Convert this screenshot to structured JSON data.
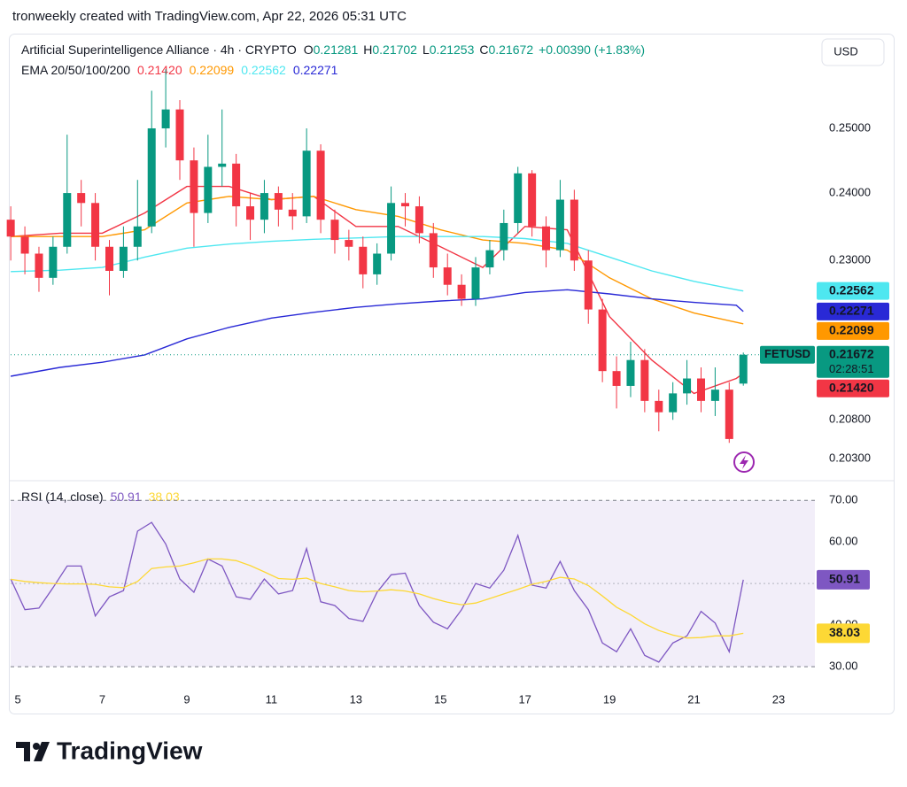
{
  "page": {
    "attribution": "tronweekly created with TradingView.com, Apr 22, 2026 05:31 UTC",
    "brand": "TradingView"
  },
  "chart_data": [
    {
      "type": "candlestick",
      "title": "Artificial Superintelligence Alliance · 4h · CRYPTO",
      "symbol": "FETUSD",
      "currency": "USD",
      "ohlc_legend": [
        {
          "key": "O",
          "text": "0.21281"
        },
        {
          "key": "H",
          "text": "0.21702"
        },
        {
          "key": "L",
          "text": "0.21253"
        },
        {
          "key": "C",
          "text": "0.21672"
        }
      ],
      "change": "+0.00390 (+1.83%)",
      "last_price_label": "0.21672",
      "countdown": "02:28:51",
      "up_color": "#089981",
      "down_color": "#f23645",
      "log_scale": true,
      "xlim": [
        4.83,
        23.86
      ],
      "xticks": [
        5,
        7,
        9,
        11,
        13,
        15,
        17,
        19,
        21,
        23
      ],
      "ylim": [
        0.2005,
        0.2651
      ],
      "yticks": [
        {
          "value": 0.25,
          "label": "0.25000"
        },
        {
          "value": 0.24,
          "label": "0.24000"
        },
        {
          "value": 0.23,
          "label": "0.23000"
        },
        {
          "value": 0.208,
          "label": "0.20800"
        },
        {
          "value": 0.203,
          "label": "0.20300"
        }
      ],
      "x": [
        4.833,
        5.167,
        5.5,
        5.833,
        6.167,
        6.5,
        6.833,
        7.167,
        7.5,
        7.833,
        8.167,
        8.5,
        8.833,
        9.167,
        9.5,
        9.833,
        10.167,
        10.5,
        10.833,
        11.167,
        11.5,
        11.833,
        12.167,
        12.5,
        12.833,
        13.167,
        13.5,
        13.833,
        14.167,
        14.5,
        14.833,
        15.167,
        15.5,
        15.833,
        16.167,
        16.5,
        16.833,
        17.167,
        17.5,
        17.833,
        18.167,
        18.5,
        18.833,
        19.167,
        19.5,
        19.833,
        20.167,
        20.5,
        20.833,
        21.167,
        21.5,
        21.833,
        22.167
      ],
      "open": [
        0.236,
        0.2335,
        0.231,
        0.2275,
        0.232,
        0.24,
        0.2385,
        0.232,
        0.2285,
        0.232,
        0.235,
        0.25,
        0.253,
        0.245,
        0.237,
        0.244,
        0.2445,
        0.238,
        0.236,
        0.24,
        0.2375,
        0.2365,
        0.2465,
        0.236,
        0.233,
        0.232,
        0.228,
        0.231,
        0.2385,
        0.238,
        0.234,
        0.229,
        0.2265,
        0.2245,
        0.229,
        0.2315,
        0.2355,
        0.243,
        0.235,
        0.2315,
        0.239,
        0.23,
        0.223,
        0.2145,
        0.2125,
        0.216,
        0.2105,
        0.209,
        0.2115,
        0.2135,
        0.2105,
        0.212,
        0.21281
      ],
      "high": [
        0.238,
        0.235,
        0.232,
        0.2335,
        0.249,
        0.242,
        0.24,
        0.233,
        0.235,
        0.242,
        0.256,
        0.2595,
        0.2545,
        0.247,
        0.249,
        0.253,
        0.246,
        0.24,
        0.242,
        0.241,
        0.24,
        0.25,
        0.2475,
        0.2375,
        0.2345,
        0.2335,
        0.2325,
        0.241,
        0.24,
        0.2395,
        0.2355,
        0.231,
        0.228,
        0.2305,
        0.233,
        0.2375,
        0.244,
        0.2435,
        0.2365,
        0.242,
        0.2405,
        0.2315,
        0.2245,
        0.2165,
        0.2185,
        0.2175,
        0.212,
        0.213,
        0.216,
        0.215,
        0.215,
        0.213,
        0.21702
      ],
      "low": [
        0.23,
        0.228,
        0.2255,
        0.2265,
        0.231,
        0.235,
        0.23,
        0.225,
        0.2275,
        0.23,
        0.234,
        0.247,
        0.242,
        0.232,
        0.2355,
        0.241,
        0.235,
        0.233,
        0.234,
        0.235,
        0.2345,
        0.2355,
        0.234,
        0.231,
        0.23,
        0.226,
        0.2265,
        0.23,
        0.235,
        0.2325,
        0.2275,
        0.225,
        0.2235,
        0.2235,
        0.228,
        0.23,
        0.234,
        0.2335,
        0.229,
        0.2305,
        0.2285,
        0.221,
        0.213,
        0.2095,
        0.211,
        0.209,
        0.2065,
        0.208,
        0.21,
        0.209,
        0.2085,
        0.205,
        0.21253
      ],
      "close": [
        0.2335,
        0.231,
        0.2275,
        0.232,
        0.24,
        0.2385,
        0.232,
        0.2285,
        0.232,
        0.235,
        0.25,
        0.253,
        0.245,
        0.237,
        0.244,
        0.2445,
        0.238,
        0.236,
        0.24,
        0.2375,
        0.2365,
        0.2465,
        0.236,
        0.233,
        0.232,
        0.228,
        0.231,
        0.2385,
        0.238,
        0.234,
        0.229,
        0.2265,
        0.2245,
        0.229,
        0.2315,
        0.2355,
        0.243,
        0.235,
        0.2315,
        0.239,
        0.23,
        0.223,
        0.2145,
        0.2125,
        0.216,
        0.2105,
        0.209,
        0.2115,
        0.2135,
        0.2105,
        0.212,
        0.2055,
        0.21672
      ],
      "overlays": {
        "title": "EMA 20/50/100/200",
        "x": [
          4.833,
          6,
          7,
          8,
          9,
          10,
          11,
          12,
          13,
          14,
          15,
          16,
          17,
          18,
          19,
          20,
          21,
          22,
          22.167
        ],
        "series": [
          {
            "color": "#f23645",
            "last_label": "0.21420",
            "values": [
              0.2335,
              0.234,
              0.234,
              0.237,
              0.241,
              0.241,
              0.239,
              0.2395,
              0.235,
              0.235,
              0.232,
              0.229,
              0.235,
              0.2345,
              0.222,
              0.216,
              0.2115,
              0.2135,
              0.2142
            ]
          },
          {
            "color": "#ff9800",
            "last_label": "0.22099",
            "values": [
              0.2335,
              0.2335,
              0.2335,
              0.2345,
              0.2385,
              0.2395,
              0.239,
              0.2395,
              0.2375,
              0.2365,
              0.2345,
              0.233,
              0.2325,
              0.2315,
              0.2275,
              0.2245,
              0.2225,
              0.2212,
              0.22099
            ]
          },
          {
            "color": "#4ee7f0",
            "last_label": "0.22562",
            "values": [
              0.2284,
              0.2286,
              0.229,
              0.2305,
              0.2318,
              0.2324,
              0.2328,
              0.2331,
              0.2333,
              0.2335,
              0.2335,
              0.2335,
              0.2332,
              0.2325,
              0.2305,
              0.2285,
              0.227,
              0.2258,
              0.22562
            ]
          },
          {
            "color": "#2929d6",
            "last_label": "0.22271",
            "values": [
              0.2138,
              0.215,
              0.2157,
              0.2167,
              0.2189,
              0.2205,
              0.2218,
              0.2226,
              0.2233,
              0.2238,
              0.2242,
              0.2245,
              0.2254,
              0.2258,
              0.2252,
              0.2245,
              0.224,
              0.2236,
              0.22271
            ]
          }
        ]
      }
    },
    {
      "type": "line",
      "title": "RSI (14, close)",
      "ylim": [
        26.4,
        74.3
      ],
      "yticks": [
        {
          "value": 70,
          "label": "70.00"
        },
        {
          "value": 60,
          "label": "60.00"
        },
        {
          "value": 40,
          "label": "40.00"
        },
        {
          "value": 30,
          "label": "30.00"
        }
      ],
      "band": [
        30,
        70
      ],
      "midline": 50,
      "band_color": "#7e57c2",
      "x": [
        4.833,
        5.167,
        5.5,
        5.833,
        6.167,
        6.5,
        6.833,
        7.167,
        7.5,
        7.833,
        8.167,
        8.5,
        8.833,
        9.167,
        9.5,
        9.833,
        10.167,
        10.5,
        10.833,
        11.167,
        11.5,
        11.833,
        12.167,
        12.5,
        12.833,
        13.167,
        13.5,
        13.833,
        14.167,
        14.5,
        14.833,
        15.167,
        15.5,
        15.833,
        16.167,
        16.5,
        16.833,
        17.167,
        17.5,
        17.833,
        18.167,
        18.5,
        18.833,
        19.167,
        19.5,
        19.833,
        20.167,
        20.5,
        20.833,
        21.167,
        21.5,
        21.833,
        22.167
      ],
      "series": [
        {
          "color": "#7e57c2",
          "last_label": "50.91",
          "values": [
            51.1,
            43.7,
            44.1,
            49.0,
            54.2,
            54.2,
            42.2,
            46.8,
            48.3,
            62.6,
            64.7,
            59.5,
            51.1,
            47.9,
            55.9,
            54.2,
            46.8,
            46.2,
            51.1,
            47.5,
            48.3,
            58.4,
            45.6,
            44.7,
            41.6,
            40.9,
            47.9,
            52.1,
            52.5,
            44.7,
            40.7,
            39.1,
            43.7,
            50.0,
            48.9,
            53.2,
            61.6,
            49.6,
            48.9,
            55.3,
            48.3,
            43.7,
            35.7,
            33.6,
            39.1,
            32.7,
            31.1,
            35.7,
            37.4,
            43.3,
            40.5,
            33.6,
            50.91
          ]
        },
        {
          "color": "#fdd835",
          "last_label": "38.03",
          "values": [
            51.0,
            50.5,
            50.2,
            50.0,
            49.9,
            49.9,
            49.8,
            49.2,
            49.0,
            50.5,
            53.6,
            54.0,
            54.2,
            55.0,
            55.9,
            55.9,
            55.5,
            54.3,
            52.8,
            51.2,
            51.0,
            51.3,
            50.0,
            49.2,
            48.3,
            48.0,
            48.2,
            48.5,
            48.2,
            47.5,
            46.4,
            45.5,
            44.9,
            45.3,
            46.4,
            47.5,
            48.6,
            49.8,
            50.5,
            51.5,
            51.1,
            49.5,
            47.0,
            44.3,
            42.5,
            40.3,
            38.7,
            37.6,
            36.9,
            37.0,
            37.4,
            37.4,
            38.03
          ]
        }
      ]
    }
  ]
}
